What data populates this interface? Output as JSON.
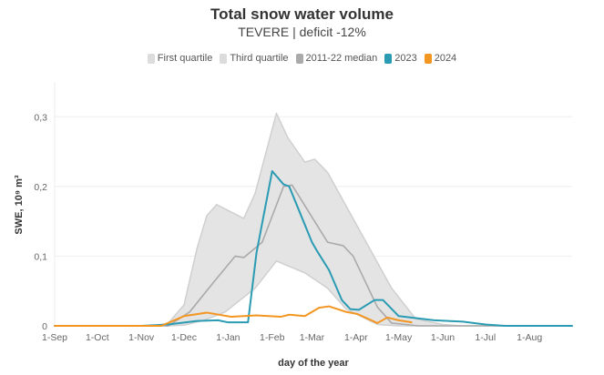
{
  "chart_data": {
    "type": "line",
    "title": "Total snow water volume",
    "subtitle": "TEVERE | deficit -12%",
    "xlabel": "day of the year",
    "ylabel": "SWE, 10⁹ m³",
    "ylim": [
      0,
      0.35
    ],
    "xlim": [
      "1-Sep",
      "31-Aug"
    ],
    "yticks": [
      "0",
      "0,1",
      "0,2",
      "0,3"
    ],
    "ytick_values": [
      0,
      0.1,
      0.2,
      0.3
    ],
    "xticks": [
      "1-Sep",
      "1-Oct",
      "1-Nov",
      "1-Dec",
      "1-Jan",
      "1-Feb",
      "1-Mar",
      "1-Apr",
      "1-May",
      "1-Jun",
      "1-Jul",
      "1-Aug"
    ],
    "grid": "horizontal",
    "legend_position": "top",
    "series": [
      {
        "name": "First quartile",
        "color": "#d9d9d9",
        "x": [
          "1-Sep",
          "20-Nov",
          "1-Dec",
          "15-Dec",
          "30-Dec",
          "20-Jan",
          "4-Feb",
          "24-Feb",
          "12-Mar",
          "25-Mar",
          "16-Apr",
          "1-May",
          "31-Aug"
        ],
        "y": [
          0,
          0,
          0.001,
          0.008,
          0.02,
          0.054,
          0.093,
          0.076,
          0.054,
          0.024,
          0.002,
          0,
          0
        ]
      },
      {
        "name": "Third quartile",
        "color": "#d9d9d9",
        "x": [
          "1-Sep",
          "10-Nov",
          "20-Nov",
          "1-Dec",
          "10-Dec",
          "17-Dec",
          "24-Dec",
          "12-Jan",
          "20-Jan",
          "4-Feb",
          "12-Feb",
          "24-Feb",
          "3-Mar",
          "12-Mar",
          "26-Apr",
          "13-May",
          "1-Jun",
          "15-Jun",
          "31-Aug"
        ],
        "y": [
          0,
          0,
          0.004,
          0.03,
          0.11,
          0.158,
          0.174,
          0.154,
          0.19,
          0.305,
          0.27,
          0.235,
          0.239,
          0.22,
          0.054,
          0.01,
          0.002,
          0,
          0
        ]
      },
      {
        "name": "2011-22 median",
        "color": "#aaaaaa",
        "x": [
          "1-Sep",
          "20-Nov",
          "5-Dec",
          "22-Dec",
          "6-Jan",
          "12-Jan",
          "25-Jan",
          "9-Feb",
          "15-Feb",
          "12-Mar",
          "23-Mar",
          "30-Mar",
          "16-Apr",
          "26-Apr",
          "15-May",
          "31-Aug"
        ],
        "y": [
          0,
          0,
          0.02,
          0.063,
          0.1,
          0.098,
          0.12,
          0.2,
          0.202,
          0.12,
          0.115,
          0.1,
          0.027,
          0.004,
          0,
          0
        ]
      },
      {
        "name": "2023",
        "color": "#2a9bb3",
        "x": [
          "1-Sep",
          "1-Nov",
          "20-Nov",
          "10-Dec",
          "25-Dec",
          "1-Jan",
          "15-Jan",
          "21-Jan",
          "1-Feb",
          "9-Feb",
          "13-Feb",
          "22-Feb",
          "1-Mar",
          "5-Mar",
          "13-Mar",
          "22-Mar",
          "28-Mar",
          "3-Apr",
          "14-Apr",
          "20-Apr",
          "1-May",
          "26-May",
          "15-Jun",
          "1-Jul",
          "15-Jul",
          "31-Aug"
        ],
        "y": [
          0,
          0,
          0.002,
          0.007,
          0.008,
          0.005,
          0.005,
          0.105,
          0.222,
          0.203,
          0.2,
          0.155,
          0.12,
          0.106,
          0.08,
          0.037,
          0.024,
          0.023,
          0.037,
          0.037,
          0.014,
          0.008,
          0.006,
          0.002,
          0,
          0
        ]
      },
      {
        "name": "2024",
        "color": "#f39621",
        "x": [
          "1-Sep",
          "15-Nov",
          "1-Dec",
          "17-Dec",
          "3-Jan",
          "21-Jan",
          "7-Feb",
          "13-Feb",
          "24-Feb",
          "6-Mar",
          "13-Mar",
          "25-Mar",
          "2-Apr",
          "16-Apr",
          "23-Apr",
          "1-May",
          "10-May"
        ],
        "y": [
          0,
          0,
          0.014,
          0.019,
          0.013,
          0.015,
          0.013,
          0.016,
          0.014,
          0.026,
          0.028,
          0.02,
          0.017,
          0.004,
          0.012,
          0.008,
          0.005
        ]
      }
    ]
  }
}
